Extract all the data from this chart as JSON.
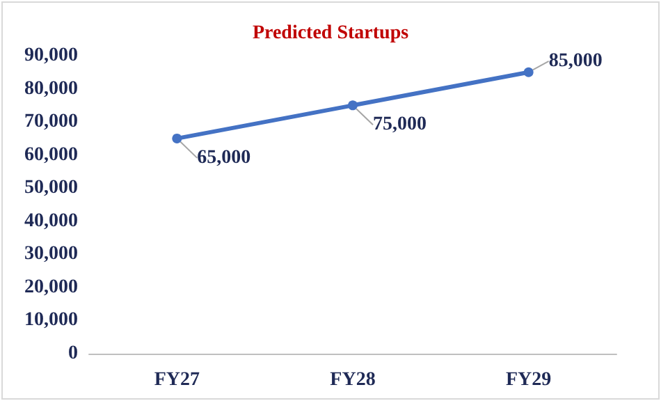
{
  "chart_data": {
    "type": "line",
    "title": "Predicted Startups",
    "categories": [
      "FY27",
      "FY28",
      "FY29"
    ],
    "series": [
      {
        "color": "#4472c4",
        "values": [
          65000,
          75000,
          85000
        ],
        "value_labels": [
          "65,000",
          "75,000",
          "85,000"
        ]
      }
    ],
    "ylim": [
      0,
      90000
    ],
    "yticks": [
      {
        "value": 0,
        "label": "0"
      },
      {
        "value": 10000,
        "label": "10,000"
      },
      {
        "value": 20000,
        "label": "20,000"
      },
      {
        "value": 30000,
        "label": "30,000"
      },
      {
        "value": 40000,
        "label": "40,000"
      },
      {
        "value": 50000,
        "label": "50,000"
      },
      {
        "value": 60000,
        "label": "60,000"
      },
      {
        "value": 70000,
        "label": "70,000"
      },
      {
        "value": 80000,
        "label": "80,000"
      },
      {
        "value": 90000,
        "label": "90,000"
      }
    ],
    "grid": false,
    "marker": "circle",
    "line_style": "solid"
  }
}
